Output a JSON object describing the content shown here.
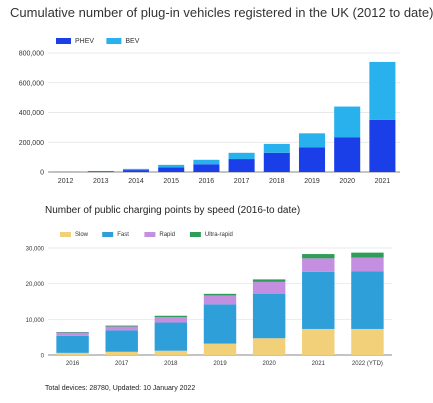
{
  "footer": "Total devices: 28780, Updated: 10 January 2022",
  "chart_data": [
    {
      "type": "bar",
      "stacked": true,
      "title": "Cumulative number of plug-in vehicles registered in the UK (2012 to date)",
      "categories": [
        "2012",
        "2013",
        "2014",
        "2015",
        "2016",
        "2017",
        "2018",
        "2019",
        "2020",
        "2021"
      ],
      "series": [
        {
          "name": "PHEV",
          "color": "#1a3ee8",
          "values": [
            1500,
            3000,
            13000,
            30000,
            52000,
            87000,
            129000,
            165000,
            232000,
            350000
          ]
        },
        {
          "name": "BEV",
          "color": "#29b1ee",
          "values": [
            2000,
            4000,
            8000,
            18000,
            30000,
            42000,
            60000,
            95000,
            208000,
            390000
          ]
        }
      ],
      "ylim": [
        0,
        800000
      ],
      "yticks": [
        0,
        200000,
        400000,
        600000,
        800000
      ],
      "ytick_labels": [
        "0",
        "200,000",
        "400,000",
        "600,000",
        "800,000"
      ],
      "legend_position": "top-left",
      "grid": true
    },
    {
      "type": "bar",
      "stacked": true,
      "title": "Number of public charging points by speed (2016-to date)",
      "categories": [
        "2016",
        "2017",
        "2018",
        "2019",
        "2020",
        "2021",
        "2022 (YTD)"
      ],
      "series": [
        {
          "name": "Slow",
          "color": "#f2d07a",
          "values": [
            600,
            900,
            1200,
            3200,
            4700,
            7300,
            7300
          ]
        },
        {
          "name": "Fast",
          "color": "#2f9fd9",
          "values": [
            4800,
            6000,
            7900,
            11000,
            12500,
            16000,
            16200
          ]
        },
        {
          "name": "Rapid",
          "color": "#c48fe0",
          "values": [
            900,
            1100,
            1500,
            2500,
            3300,
            3800,
            3800
          ]
        },
        {
          "name": "Ultra-rapid",
          "color": "#2e9e57",
          "values": [
            150,
            250,
            400,
            450,
            700,
            1200,
            1400
          ]
        }
      ],
      "ylim": [
        0,
        30000
      ],
      "yticks": [
        0,
        10000,
        20000,
        30000
      ],
      "ytick_labels": [
        "0",
        "10,000",
        "20,000",
        "30,000"
      ],
      "legend_position": "top-left",
      "grid": true
    }
  ]
}
